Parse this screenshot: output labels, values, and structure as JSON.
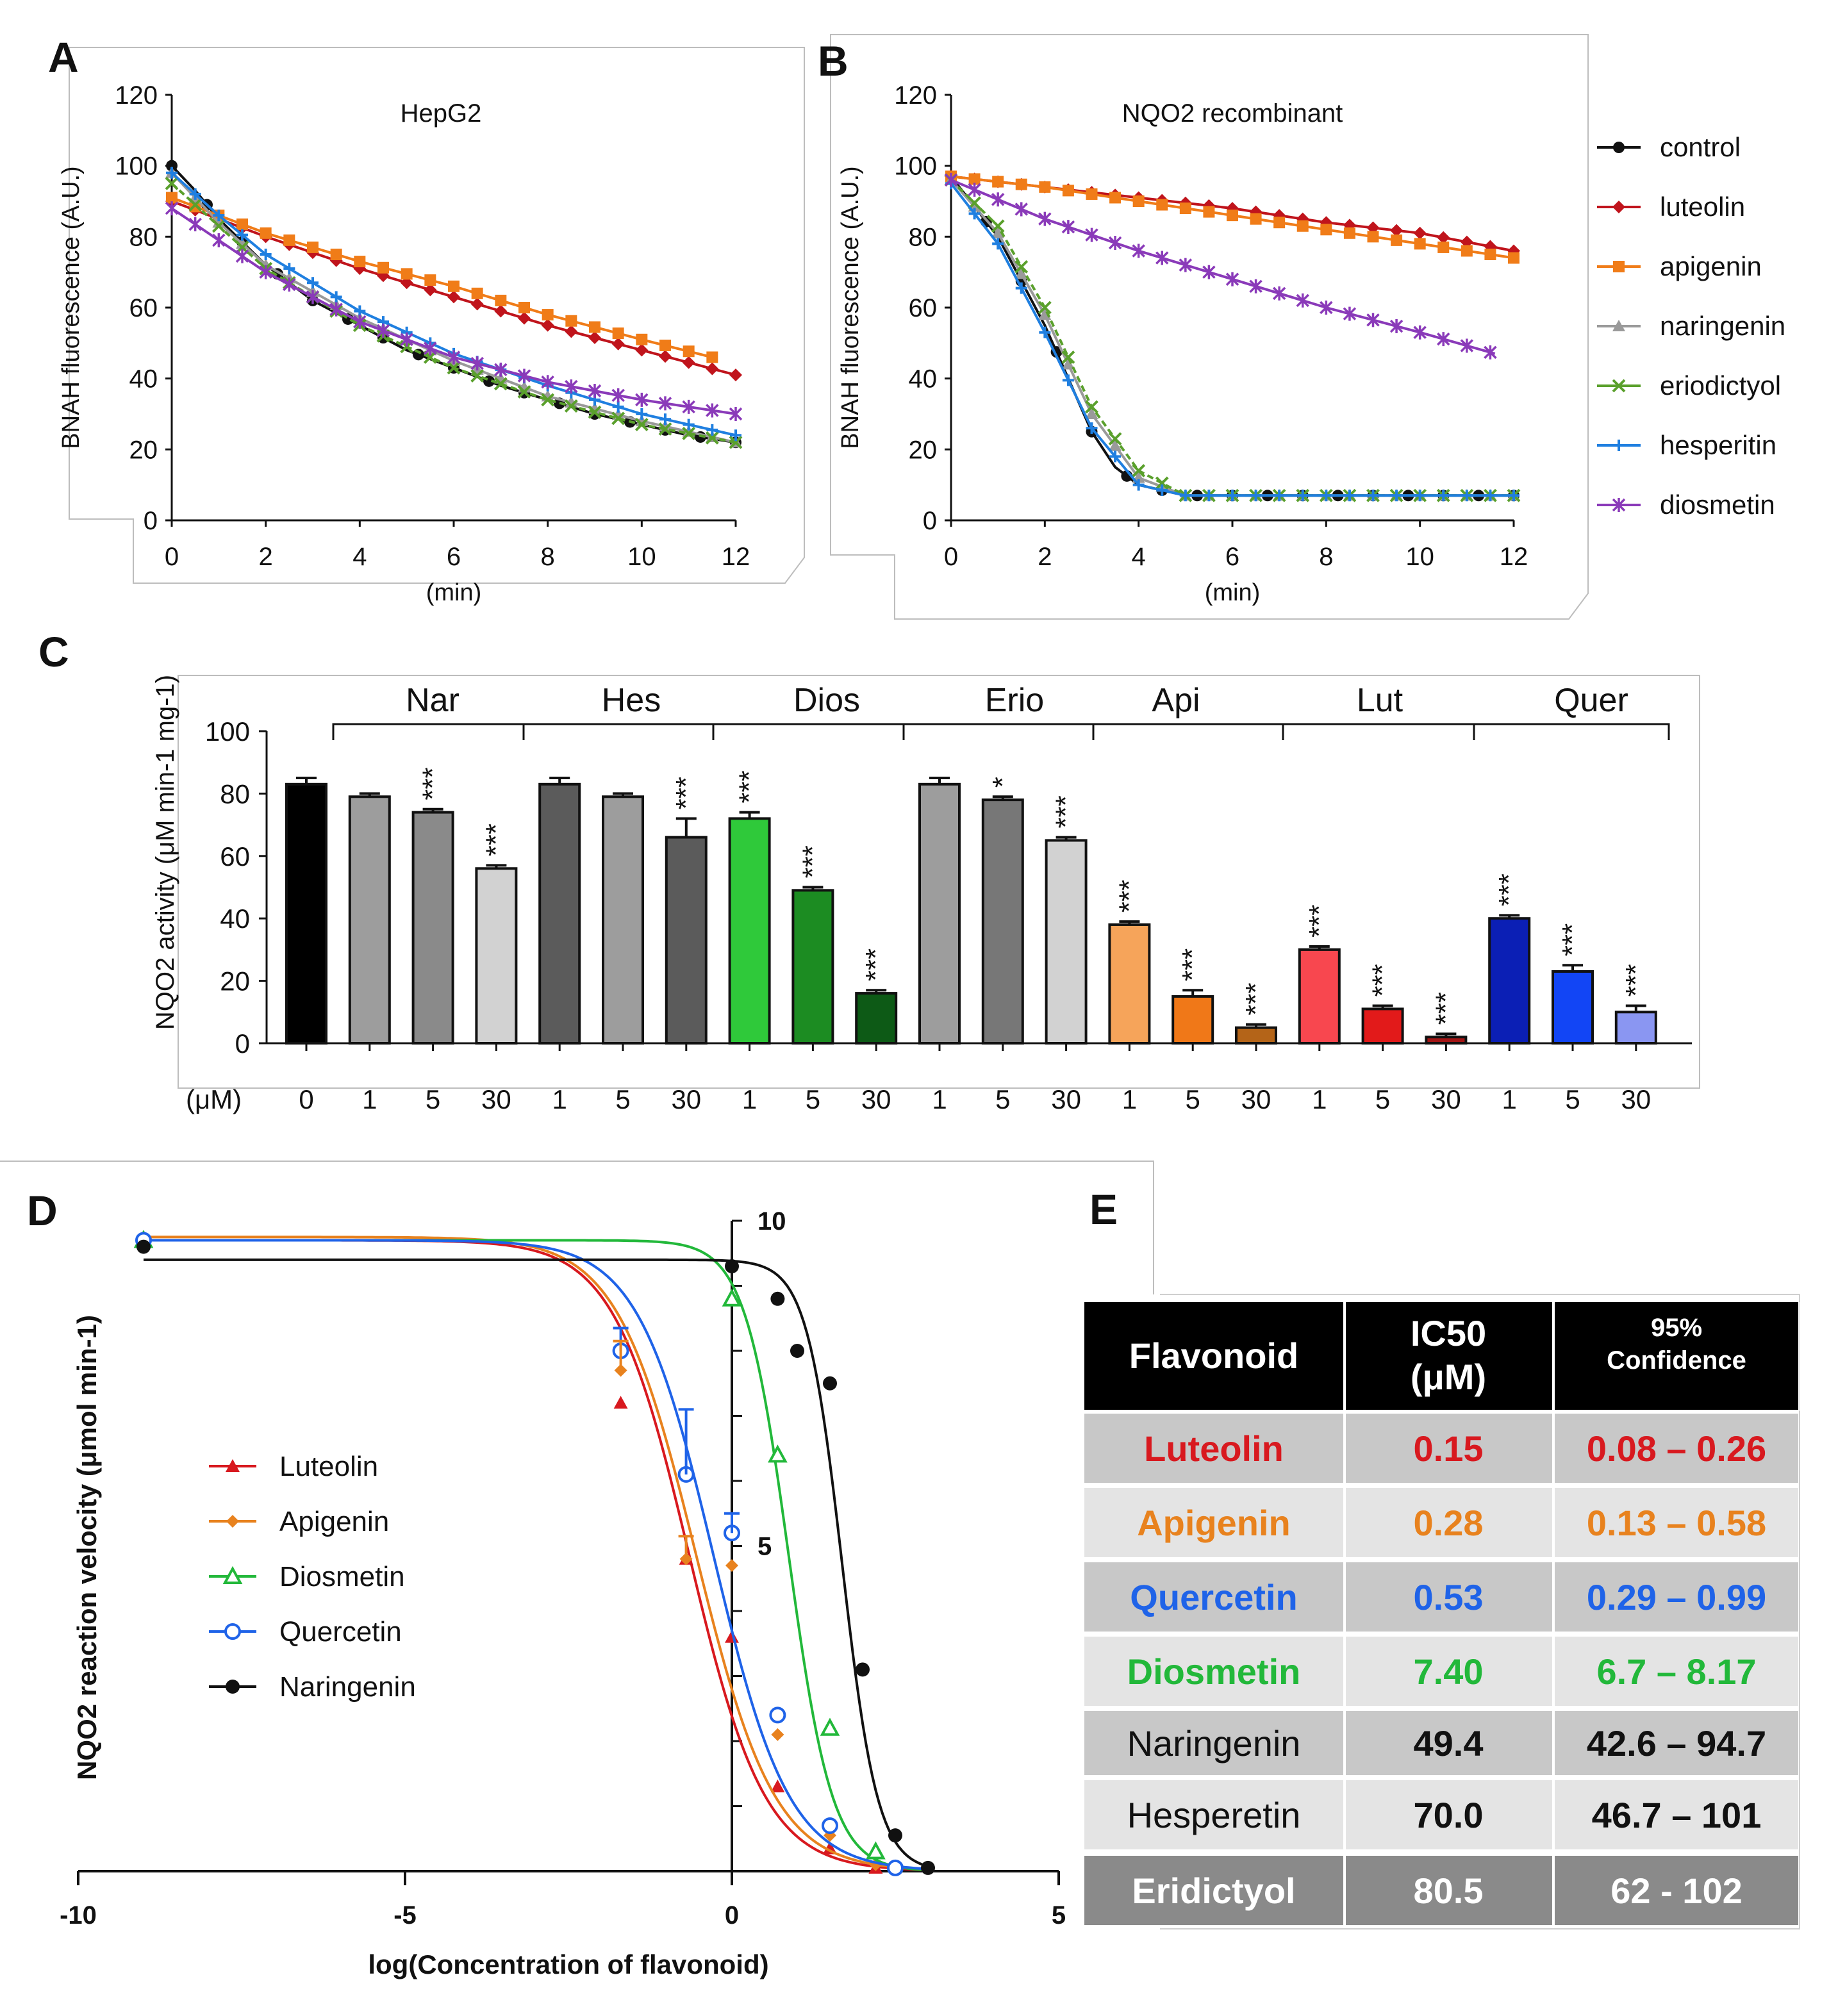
{
  "colors": {
    "control": "#111111",
    "luteolin": "#c0141c",
    "apigenin": "#f07c18",
    "naringenin": "#9a9a9a",
    "eriodictyol": "#5aa02c",
    "hesperitin": "#1f7fe0",
    "diosmetin": "#8a3ab9",
    "lut_red": "#d8191f",
    "api_orange": "#e8821e",
    "quer_blue": "#1f63e8",
    "dios_green": "#22b83a"
  },
  "chart_data": [
    {
      "panel": "A",
      "type": "line",
      "title": "HepG2",
      "xlabel": "(min)",
      "ylabel": "BNAH fluorescence (A.U.)",
      "xlim": [
        0,
        12
      ],
      "ylim": [
        0,
        120
      ],
      "xticks": [
        "0",
        "2",
        "4",
        "6",
        "8",
        "10",
        "12"
      ],
      "yticks": [
        "0",
        "20",
        "40",
        "60",
        "80",
        "100",
        "120"
      ],
      "series": [
        {
          "name": "control",
          "points": [
            [
              0,
              100
            ],
            [
              0.5,
              93
            ],
            [
              1,
              85
            ],
            [
              2,
              72
            ],
            [
              3,
              62
            ],
            [
              4,
              55
            ],
            [
              5,
              48
            ],
            [
              6,
              43
            ],
            [
              7,
              38
            ],
            [
              8,
              34
            ],
            [
              9,
              30
            ],
            [
              10,
              27
            ],
            [
              11,
              24
            ],
            [
              12,
              22
            ]
          ]
        },
        {
          "name": "luteolin",
          "points": [
            [
              0,
              90
            ],
            [
              2,
              80
            ],
            [
              4,
              71
            ],
            [
              6,
              63
            ],
            [
              8,
              55
            ],
            [
              10,
              48
            ],
            [
              12,
              41
            ]
          ]
        },
        {
          "name": "apigenin",
          "points": [
            [
              0,
              91
            ],
            [
              2,
              81
            ],
            [
              4,
              73
            ],
            [
              6,
              66
            ],
            [
              8,
              58
            ],
            [
              10,
              51
            ],
            [
              11.5,
              46
            ]
          ]
        },
        {
          "name": "naringenin",
          "points": [
            [
              0,
              98
            ],
            [
              1,
              84
            ],
            [
              2,
              72
            ],
            [
              4,
              57
            ],
            [
              6,
              45
            ],
            [
              8,
              35
            ],
            [
              10,
              28
            ],
            [
              12,
              22
            ]
          ]
        },
        {
          "name": "eriodictyol",
          "points": [
            [
              0,
              95
            ],
            [
              1,
              83
            ],
            [
              2,
              71
            ],
            [
              4,
              55
            ],
            [
              6,
              43
            ],
            [
              8,
              34
            ],
            [
              10,
              27
            ],
            [
              12,
              22
            ]
          ]
        },
        {
          "name": "hesperitin",
          "points": [
            [
              0,
              98
            ],
            [
              1,
              86
            ],
            [
              2,
              75
            ],
            [
              4,
              59
            ],
            [
              6,
              47
            ],
            [
              8,
              38
            ],
            [
              10,
              30
            ],
            [
              12,
              24
            ]
          ]
        },
        {
          "name": "diosmetin",
          "points": [
            [
              0,
              88
            ],
            [
              1,
              79
            ],
            [
              2,
              70
            ],
            [
              4,
              56
            ],
            [
              6,
              46
            ],
            [
              8,
              39
            ],
            [
              10,
              34
            ],
            [
              12,
              30
            ]
          ]
        }
      ]
    },
    {
      "panel": "B",
      "type": "line",
      "title": "NQO2 recombinant",
      "xlabel": "(min)",
      "ylabel": "BNAH fluorescence (A.U.)",
      "xlim": [
        0,
        12
      ],
      "ylim": [
        0,
        120
      ],
      "xticks": [
        "0",
        "2",
        "4",
        "6",
        "8",
        "10",
        "12"
      ],
      "yticks": [
        "0",
        "20",
        "40",
        "60",
        "80",
        "100",
        "120"
      ],
      "legend": [
        "control",
        "luteolin",
        "apigenin",
        "naringenin",
        "eriodictyol",
        "hesperitin",
        "diosmetin"
      ],
      "series": [
        {
          "name": "control",
          "points": [
            [
              0,
              97
            ],
            [
              1,
              80
            ],
            [
              2,
              55
            ],
            [
              2.5,
              40
            ],
            [
              3,
              25
            ],
            [
              3.5,
              15
            ],
            [
              4,
              10
            ],
            [
              5,
              7
            ],
            [
              6,
              7
            ],
            [
              8,
              7
            ],
            [
              10,
              7
            ],
            [
              12,
              7
            ]
          ]
        },
        {
          "name": "luteolin",
          "points": [
            [
              0,
              97
            ],
            [
              2,
              94
            ],
            [
              4,
              91
            ],
            [
              6,
              88
            ],
            [
              8,
              84
            ],
            [
              10,
              81
            ],
            [
              12,
              76
            ]
          ]
        },
        {
          "name": "apigenin",
          "points": [
            [
              0,
              97
            ],
            [
              2,
              94
            ],
            [
              4,
              90
            ],
            [
              6,
              86
            ],
            [
              8,
              82
            ],
            [
              10,
              78
            ],
            [
              12,
              74
            ]
          ]
        },
        {
          "name": "naringenin",
          "points": [
            [
              0,
              96
            ],
            [
              1,
              81
            ],
            [
              2,
              58
            ],
            [
              3,
              30
            ],
            [
              4,
              12
            ],
            [
              5,
              7
            ],
            [
              12,
              7
            ]
          ]
        },
        {
          "name": "eriodictyol",
          "points": [
            [
              0,
              96
            ],
            [
              1,
              83
            ],
            [
              2,
              60
            ],
            [
              3,
              32
            ],
            [
              4,
              14
            ],
            [
              5,
              7
            ],
            [
              12,
              7
            ]
          ]
        },
        {
          "name": "hesperitin",
          "points": [
            [
              0,
              95
            ],
            [
              1,
              78
            ],
            [
              2,
              53
            ],
            [
              3,
              26
            ],
            [
              4,
              10
            ],
            [
              5,
              7
            ],
            [
              12,
              7
            ]
          ]
        },
        {
          "name": "diosmetin",
          "points": [
            [
              0,
              96
            ],
            [
              2,
              85
            ],
            [
              4,
              76
            ],
            [
              6,
              68
            ],
            [
              8,
              60
            ],
            [
              10,
              53
            ],
            [
              11.6,
              47
            ]
          ]
        }
      ]
    },
    {
      "panel": "C",
      "type": "bar",
      "ylabel": "NQO2 activity (μM min-1 mg-1)",
      "ylim": [
        0,
        100
      ],
      "yticks": [
        "0",
        "20",
        "40",
        "60",
        "80",
        "100"
      ],
      "unit_label": "(μM)",
      "groups": [
        "Nar",
        "Hes",
        "Dios",
        "Erio",
        "Api",
        "Lut",
        "Quer"
      ],
      "categories": [
        "0",
        "1",
        "5",
        "30",
        "1",
        "5",
        "30",
        "1",
        "5",
        "30",
        "1",
        "5",
        "30",
        "1",
        "5",
        "30",
        "1",
        "5",
        "30",
        "1",
        "5",
        "30"
      ],
      "values": [
        83,
        79,
        74,
        56,
        83,
        79,
        66,
        72,
        49,
        16,
        83,
        78,
        65,
        38,
        15,
        5,
        30,
        11,
        2,
        40,
        23,
        10
      ],
      "errors": [
        2,
        1,
        1,
        1,
        2,
        1,
        6,
        2,
        1,
        1,
        2,
        1,
        1,
        1,
        2,
        1,
        1,
        1,
        1,
        1,
        2,
        2
      ],
      "significance": [
        "",
        "",
        "***",
        "***",
        "",
        "",
        "***",
        "***",
        "***",
        "***",
        "",
        "*",
        "***",
        "***",
        "***",
        "***",
        "***",
        "***",
        "***",
        "***",
        "***",
        "***"
      ],
      "bar_colors": [
        "#000000",
        "#9d9d9d",
        "#8a8a8a",
        "#d2d2d2",
        "#5b5b5b",
        "#9d9d9d",
        "#5b5b5b",
        "#2fc93a",
        "#1c8c22",
        "#0d5a16",
        "#9d9d9d",
        "#777777",
        "#d2d2d2",
        "#f6a45a",
        "#f07818",
        "#b46418",
        "#f8474f",
        "#e21a1a",
        "#a21515",
        "#0b1fb5",
        "#1245f5",
        "#8a96f2"
      ]
    },
    {
      "panel": "D",
      "type": "line",
      "xlabel": "log(Concentration of flavonoid)",
      "ylabel": "NQO2 reaction velocity (μmol min-1)",
      "xlim": [
        -10,
        5
      ],
      "ylim": [
        0,
        10
      ],
      "xticks": [
        "-10",
        "-5",
        "0",
        "5"
      ],
      "yticks": [
        "5",
        "10"
      ],
      "series": [
        {
          "name": "Luteolin",
          "marker": "filled-triangle",
          "points": [
            [
              -9,
              9.7
            ],
            [
              -1.7,
              7.2
            ],
            [
              -0.7,
              4.8
            ],
            [
              0,
              3.6
            ],
            [
              0.7,
              1.3
            ],
            [
              1.5,
              0.35
            ],
            [
              2.2,
              0.05
            ]
          ]
        },
        {
          "name": "Apigenin",
          "marker": "diamond",
          "points": [
            [
              -9,
              9.75
            ],
            [
              -1.7,
              7.7
            ],
            [
              -0.7,
              4.8
            ],
            [
              0,
              4.7
            ],
            [
              0.7,
              2.1
            ],
            [
              1.5,
              0.55
            ],
            [
              2.2,
              0.1
            ]
          ]
        },
        {
          "name": "Diosmetin",
          "marker": "open-triangle",
          "points": [
            [
              -9,
              9.7
            ],
            [
              0,
              8.8
            ],
            [
              0.7,
              6.4
            ],
            [
              1.5,
              2.2
            ],
            [
              2.2,
              0.3
            ]
          ]
        },
        {
          "name": "Quercetin",
          "marker": "open-circle",
          "points": [
            [
              -9,
              9.7
            ],
            [
              -1.7,
              8.0
            ],
            [
              -0.7,
              6.1
            ],
            [
              0,
              5.2
            ],
            [
              0.7,
              2.4
            ],
            [
              1.5,
              0.7
            ],
            [
              2.5,
              0.05
            ]
          ]
        },
        {
          "name": "Naringenin",
          "marker": "filled-circle",
          "points": [
            [
              -9,
              9.6
            ],
            [
              0,
              9.3
            ],
            [
              0.7,
              8.8
            ],
            [
              1,
              8.0
            ],
            [
              1.5,
              7.5
            ],
            [
              2,
              3.1
            ],
            [
              2.5,
              0.55
            ],
            [
              3,
              0.05
            ]
          ]
        }
      ]
    }
  ],
  "panels": {
    "A": "A",
    "B": "B",
    "C": "C",
    "D": "D",
    "E": "E"
  },
  "table": {
    "headers": [
      "Flavonoid",
      "IC50",
      "(μM)",
      "95%",
      "Confidence"
    ],
    "rows": [
      {
        "name": "Luteolin",
        "ic50": "0.15",
        "ci": "0.08 – 0.26"
      },
      {
        "name": "Apigenin",
        "ic50": "0.28",
        "ci": "0.13 – 0.58"
      },
      {
        "name": "Quercetin",
        "ic50": "0.53",
        "ci": "0.29 – 0.99"
      },
      {
        "name": "Diosmetin",
        "ic50": "7.40",
        "ci": "6.7 – 8.17"
      },
      {
        "name": "Naringenin",
        "ic50": "49.4",
        "ci": "42.6 – 94.7"
      },
      {
        "name": "Hesperetin",
        "ic50": "70.0",
        "ci": "46.7 – 101"
      },
      {
        "name": "Eridictyol",
        "ic50": "80.5",
        "ci": "62 - 102"
      }
    ]
  }
}
